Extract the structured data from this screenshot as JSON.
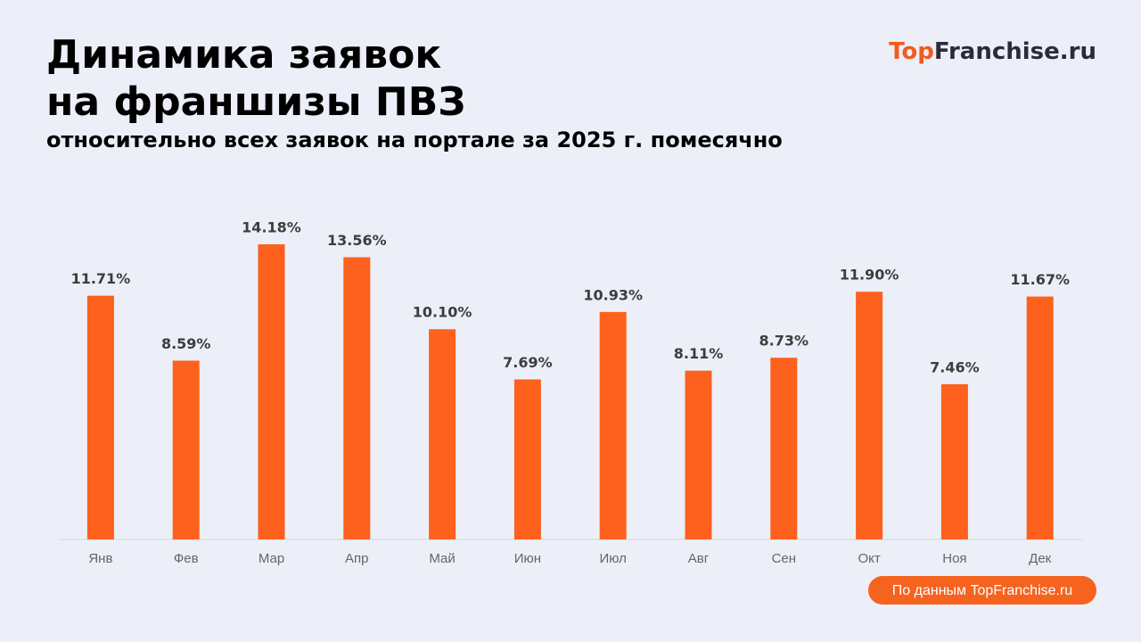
{
  "chart_data": {
    "type": "bar",
    "title_lines": [
      "Динамика заявок",
      "на франшизы ПВЗ"
    ],
    "subtitle": "относительно всех заявок на портале за 2025 г. помесячно",
    "logo": {
      "accent": "Top",
      "rest": "Franchise.ru"
    },
    "source": "По данным TopFranchise.ru",
    "categories": [
      "Янв",
      "Фев",
      "Мар",
      "Апр",
      "Май",
      "Июн",
      "Июл",
      "Авг",
      "Сен",
      "Окт",
      "Ноя",
      "Дек"
    ],
    "values": [
      11.71,
      8.59,
      14.18,
      13.56,
      10.1,
      7.69,
      10.93,
      8.11,
      8.73,
      11.9,
      7.46,
      11.67
    ],
    "value_labels": [
      "11.71%",
      "8.59%",
      "14.18%",
      "13.56%",
      "10.10%",
      "7.69%",
      "10.93%",
      "8.11%",
      "8.73%",
      "11.90%",
      "7.46%",
      "11.67%"
    ],
    "color": "#fd611d"
  }
}
